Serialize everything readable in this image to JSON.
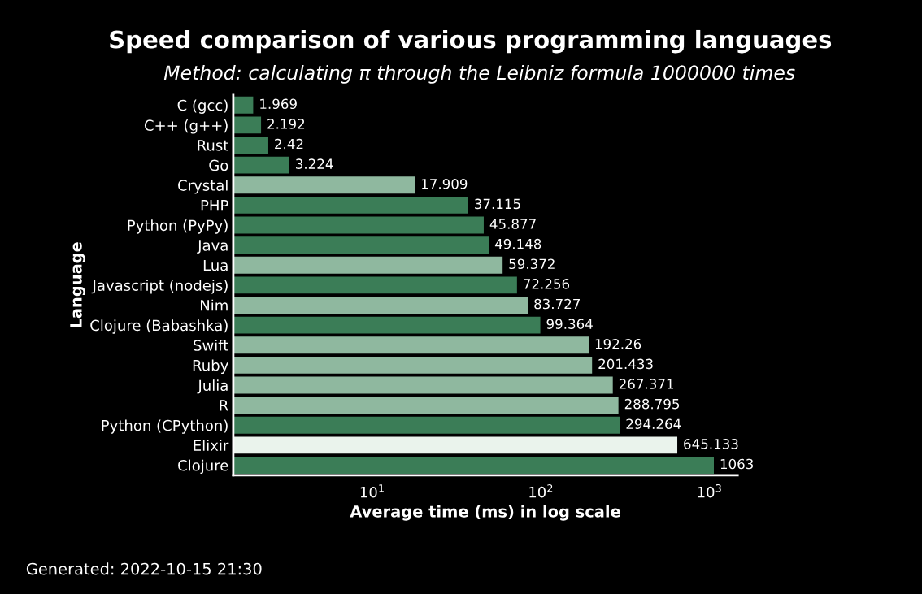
{
  "chart_data": {
    "type": "bar",
    "orientation": "horizontal",
    "title": "Speed comparison of various programming languages",
    "subtitle": "Method: calculating π through the Leibniz formula 1000000 times",
    "xlabel": "Average time (ms) in log scale",
    "ylabel": "Language",
    "categories": [
      "C (gcc)",
      "C++ (g++)",
      "Rust",
      "Go",
      "Crystal",
      "PHP",
      "Python (PyPy)",
      "Java",
      "Lua",
      "Javascript (nodejs)",
      "Nim",
      "Clojure (Babashka)",
      "Swift",
      "Ruby",
      "Julia",
      "R",
      "Python (CPython)",
      "Elixir",
      "Clojure"
    ],
    "values": [
      1.969,
      2.192,
      2.42,
      3.224,
      17.909,
      37.115,
      45.877,
      49.148,
      59.372,
      72.256,
      83.727,
      99.364,
      192.26,
      201.433,
      267.371,
      288.795,
      294.264,
      645.133,
      1063
    ],
    "colors": [
      "#3b7d57",
      "#3b7d57",
      "#3b7d57",
      "#3b7d57",
      "#8fb89f",
      "#3b7d57",
      "#3b7d57",
      "#3b7d57",
      "#8fb89f",
      "#3b7d57",
      "#8fb89f",
      "#3b7d57",
      "#8fb89f",
      "#8fb89f",
      "#8fb89f",
      "#8fb89f",
      "#3b7d57",
      "#eaf3ec",
      "#3b7d57"
    ],
    "data_labels": true,
    "log": "x",
    "xlim": [
      1.5,
      1470
    ],
    "xticks": [
      {
        "value": 10,
        "label": "10$^{1}$"
      },
      {
        "value": 100,
        "label": "10$^{2}$"
      },
      {
        "value": 1000,
        "label": "10$^{3}$"
      }
    ],
    "grid": false,
    "legend": false,
    "annotations": [
      "Generated: 2022-10-15 21:30"
    ]
  }
}
